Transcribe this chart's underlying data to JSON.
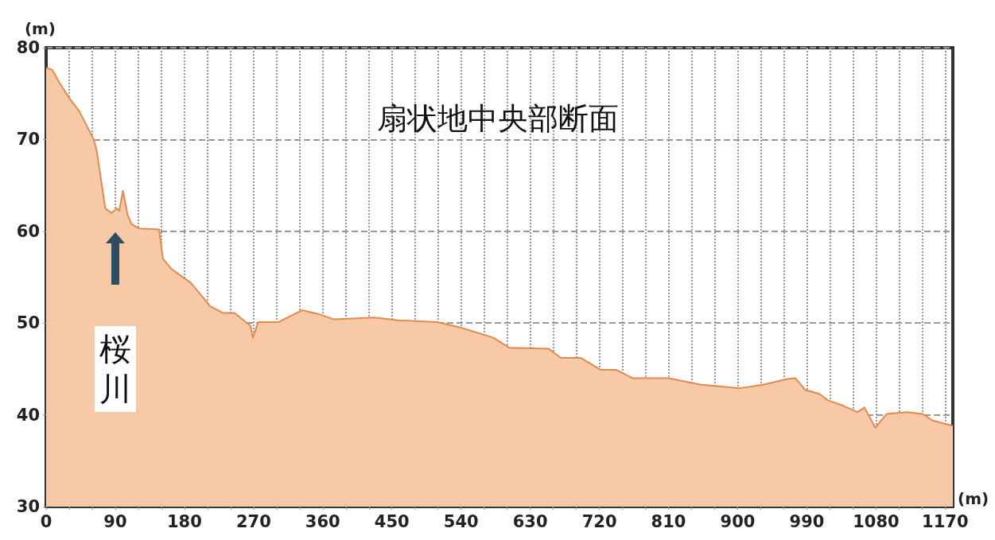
{
  "chart_data": {
    "type": "area",
    "title": "扇状地中央部断面",
    "xlabel": "(m)",
    "ylabel": "(m)",
    "x": [
      0,
      8,
      18,
      31,
      43,
      54,
      62,
      66,
      72,
      77,
      85,
      92,
      95,
      100,
      106,
      111,
      121,
      147,
      152,
      163,
      188,
      214,
      230,
      245,
      266,
      269,
      276,
      302,
      333,
      354,
      375,
      427,
      458,
      509,
      540,
      582,
      603,
      654,
      670,
      696,
      722,
      742,
      763,
      810,
      851,
      903,
      934,
      965,
      975,
      988,
      1006,
      1017,
      1037,
      1056,
      1065,
      1079,
      1094,
      1120,
      1141,
      1153,
      1180
    ],
    "series": [
      {
        "color": "#e08a50",
        "values": [
          77.8,
          77.6,
          76.1,
          74.4,
          73.1,
          71.3,
          70.0,
          68.7,
          65.3,
          62.5,
          62.0,
          62.5,
          62.2,
          64.4,
          61.8,
          60.8,
          60.3,
          60.2,
          57.0,
          55.9,
          54.4,
          51.8,
          51.1,
          51.1,
          49.7,
          48.4,
          50.1,
          50.1,
          51.4,
          51.0,
          50.4,
          50.6,
          50.3,
          50.1,
          49.5,
          48.4,
          47.3,
          47.2,
          46.2,
          46.2,
          44.9,
          44.9,
          44.0,
          44.0,
          43.3,
          42.9,
          43.3,
          43.9,
          44.0,
          42.7,
          42.3,
          41.6,
          41.0,
          40.3,
          40.8,
          38.6,
          40.1,
          40.3,
          40.1,
          39.4,
          38.8
        ]
      }
    ],
    "xlim": [
      0,
      1180
    ],
    "ylim": [
      30,
      80
    ],
    "xticks": [
      0,
      {
        "value": 30,
        "label": null
      },
      {
        "value": 60,
        "label": null
      },
      90,
      {
        "value": 120,
        "label": null
      },
      {
        "value": 150,
        "label": null
      },
      180,
      {
        "value": 210,
        "label": null
      },
      {
        "value": 240,
        "label": null
      },
      270,
      {
        "value": 300,
        "label": null
      },
      {
        "value": 330,
        "label": null
      },
      360,
      {
        "value": 390,
        "label": null
      },
      {
        "value": 420,
        "label": null
      },
      450,
      {
        "value": 480,
        "label": null
      },
      {
        "value": 510,
        "label": null
      },
      540,
      {
        "value": 570,
        "label": null
      },
      {
        "value": 600,
        "label": null
      },
      630,
      {
        "value": 660,
        "label": null
      },
      {
        "value": 690,
        "label": null
      },
      720,
      {
        "value": 750,
        "label": null
      },
      {
        "value": 780,
        "label": null
      },
      810,
      {
        "value": 840,
        "label": null
      },
      {
        "value": 870,
        "label": null
      },
      900,
      {
        "value": 930,
        "label": null
      },
      {
        "value": 960,
        "label": null
      },
      990,
      {
        "value": 1020,
        "label": null
      },
      {
        "value": 1050,
        "label": null
      },
      1080,
      {
        "value": 1110,
        "label": null
      },
      {
        "value": 1140,
        "label": null
      },
      1170
    ],
    "yticks": [
      30,
      40,
      50,
      60,
      70,
      80
    ],
    "grid": true,
    "marker": "none",
    "line_style": "solid",
    "annotations": [
      "桜川"
    ]
  }
}
